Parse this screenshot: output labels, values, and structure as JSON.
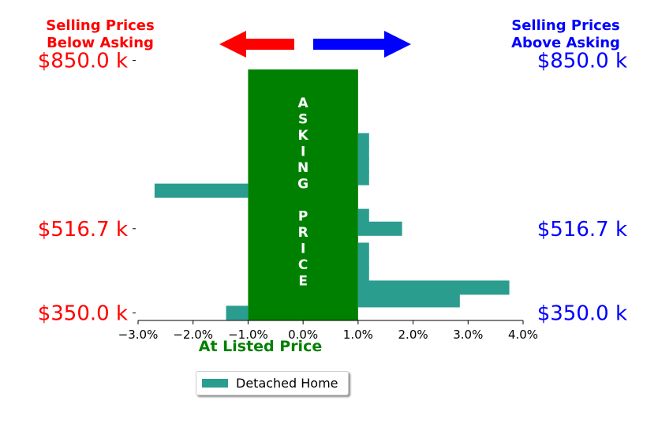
{
  "chart_data": {
    "type": "bar",
    "orientation": "horizontal",
    "left_title": [
      "Selling Prices",
      "Below Asking"
    ],
    "right_title": [
      "Selling Prices",
      "Above Asking"
    ],
    "left_title_color": "#ff0000",
    "right_title_color": "#0000ff",
    "arrow_left_color": "#ff0000",
    "arrow_right_color": "#0000ff",
    "center_box_color": "#008000",
    "center_box_xrange": [
      -1.0,
      1.0
    ],
    "center_box_letters": [
      "A",
      "S",
      "K",
      "I",
      "N",
      "G",
      "",
      "P",
      "R",
      "I",
      "C",
      "E"
    ],
    "xlabel": "At Listed Price",
    "xlabel_color": "#008000",
    "xlim": [
      -3.0,
      4.0
    ],
    "xticks": [
      -3.0,
      -2.0,
      -1.0,
      0.0,
      1.0,
      2.0,
      3.0,
      4.0
    ],
    "xtick_labels": [
      "−3.0%",
      "−2.0%",
      "−1.0%",
      "0.0%",
      "1.0%",
      "2.0%",
      "3.0%",
      "4.0%"
    ],
    "ylim": [
      335,
      865
    ],
    "yticks": [
      350,
      516.7,
      850
    ],
    "ytick_labels_left": [
      "$350.0 k",
      "$516.7 k",
      "$850.0 k"
    ],
    "ytick_labels_right": [
      "$350.0 k",
      "$516.7 k",
      "$850.0 k"
    ],
    "ytick_left_color": "#ff0000",
    "ytick_right_color": "#0000ff",
    "bar_color": "#2a9d8f",
    "series": [
      {
        "name": "Detached Home",
        "values": [
          {
            "y": 350,
            "x": -1.4
          },
          {
            "y": 375,
            "x": 2.85
          },
          {
            "y": 400,
            "x": 3.75
          },
          {
            "y": 425,
            "x": 1.2
          },
          {
            "y": 450,
            "x": 1.2
          },
          {
            "y": 475,
            "x": 1.2
          },
          {
            "y": 516.7,
            "x": 1.8
          },
          {
            "y": 542,
            "x": 1.2
          },
          {
            "y": 592,
            "x": -2.7
          },
          {
            "y": 617,
            "x": 1.2
          },
          {
            "y": 642,
            "x": 1.2
          },
          {
            "y": 667,
            "x": 1.2
          },
          {
            "y": 692,
            "x": 1.2
          }
        ]
      }
    ],
    "legend": {
      "position": "bottom-center",
      "label": "Detached Home"
    }
  }
}
